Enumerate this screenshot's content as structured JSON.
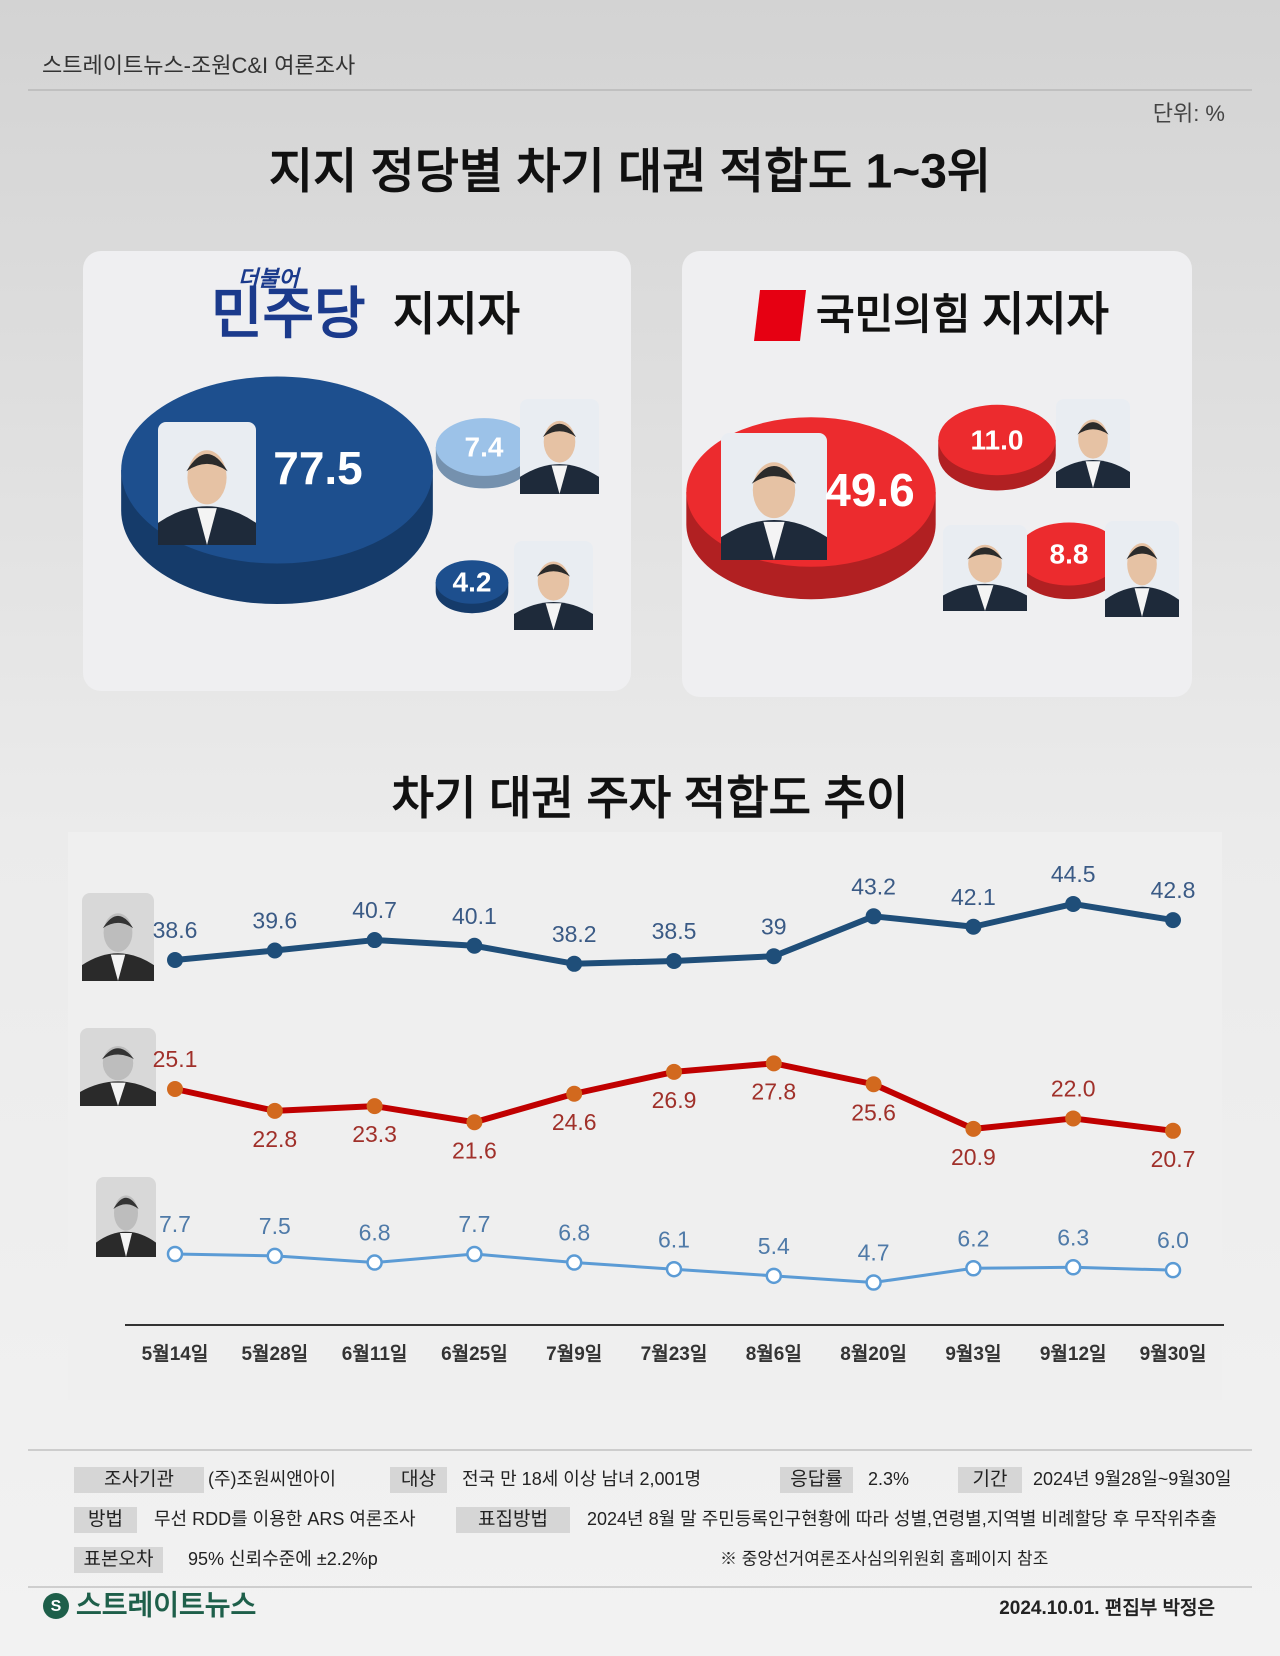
{
  "header": {
    "source": "스트레이트뉴스-조원C&I 여론조사",
    "unit": "단위: %",
    "title": "지지 정당별 차기 대권  적합도 1~3위"
  },
  "chart_data": [
    {
      "type": "bubble",
      "party_prefix": "더불어",
      "party": "민주당",
      "title": "지지자",
      "values": [
        77.5,
        7.4,
        4.2
      ],
      "colors": [
        "#1d4f8e",
        "#9cc2e8",
        "#1d4f8e"
      ]
    },
    {
      "type": "bubble",
      "party": "국민의힘",
      "title": "지지자",
      "values": [
        49.6,
        11,
        8.8
      ],
      "value_labels": [
        "49.6",
        "11.0",
        "8.8"
      ],
      "colors": [
        "#ec2b2e",
        "#ec2b2e",
        "#ec2b2e"
      ]
    },
    {
      "type": "line",
      "title": "차기 대권 주자 적합도 추이",
      "categories": [
        "5월14일",
        "5월28일",
        "6월11일",
        "6월25일",
        "7월9일",
        "7월23일",
        "8월6일",
        "8월20일",
        "9월3일",
        "9월12일",
        "9월30일"
      ],
      "series": [
        {
          "color": "#1f4e79",
          "values": [
            38.6,
            39.6,
            40.7,
            40.1,
            38.2,
            38.5,
            39,
            43.2,
            42.1,
            44.5,
            42.8
          ]
        },
        {
          "color": "#c00000",
          "marker_color": "#d2691e",
          "values": [
            25.1,
            22.8,
            23.3,
            21.6,
            24.6,
            26.9,
            27.8,
            25.6,
            20.9,
            22.0,
            20.7
          ],
          "value_labels": [
            "25.1",
            "22.8",
            "23.3",
            "21.6",
            "24.6",
            "26.9",
            "27.8",
            "25.6",
            "20.9",
            "22.0",
            "20.7"
          ]
        },
        {
          "color": "#5b9bd5",
          "marker_color": "#ffffff",
          "values": [
            7.7,
            7.5,
            6.8,
            7.7,
            6.8,
            6.1,
            5.4,
            4.7,
            6.2,
            6.3,
            6.0
          ],
          "value_labels": [
            "7.7",
            "7.5",
            "6.8",
            "7.7",
            "6.8",
            "6.1",
            "5.4",
            "4.7",
            "6.2",
            "6.3",
            "6.0"
          ]
        }
      ]
    }
  ],
  "footer": {
    "items": [
      {
        "label": "조사기관",
        "text": "(주)조원씨앤아이"
      },
      {
        "label": "대상",
        "text": "전국 만 18세 이상 남녀 2,001명"
      },
      {
        "label": "응답률",
        "text": "2.3%"
      },
      {
        "label": "기간",
        "text": "2024년 9월28일~9월30일"
      },
      {
        "label": "방법",
        "text": "무선 RDD를 이용한 ARS 여론조사"
      },
      {
        "label": "표집방법",
        "text": "2024년 8월 말 주민등록인구현황에 따라 성별,연령별,지역별 비례할당 후 무작위추출"
      },
      {
        "label": "표본오차",
        "text": "95% 신뢰수준에 ±2.2%p"
      }
    ],
    "note": "※ 중앙선거여론조사심의위원회 홈페이지 참조",
    "logo": "스트레이트뉴스",
    "byline": "2024.10.01. 편집부 박정은"
  }
}
